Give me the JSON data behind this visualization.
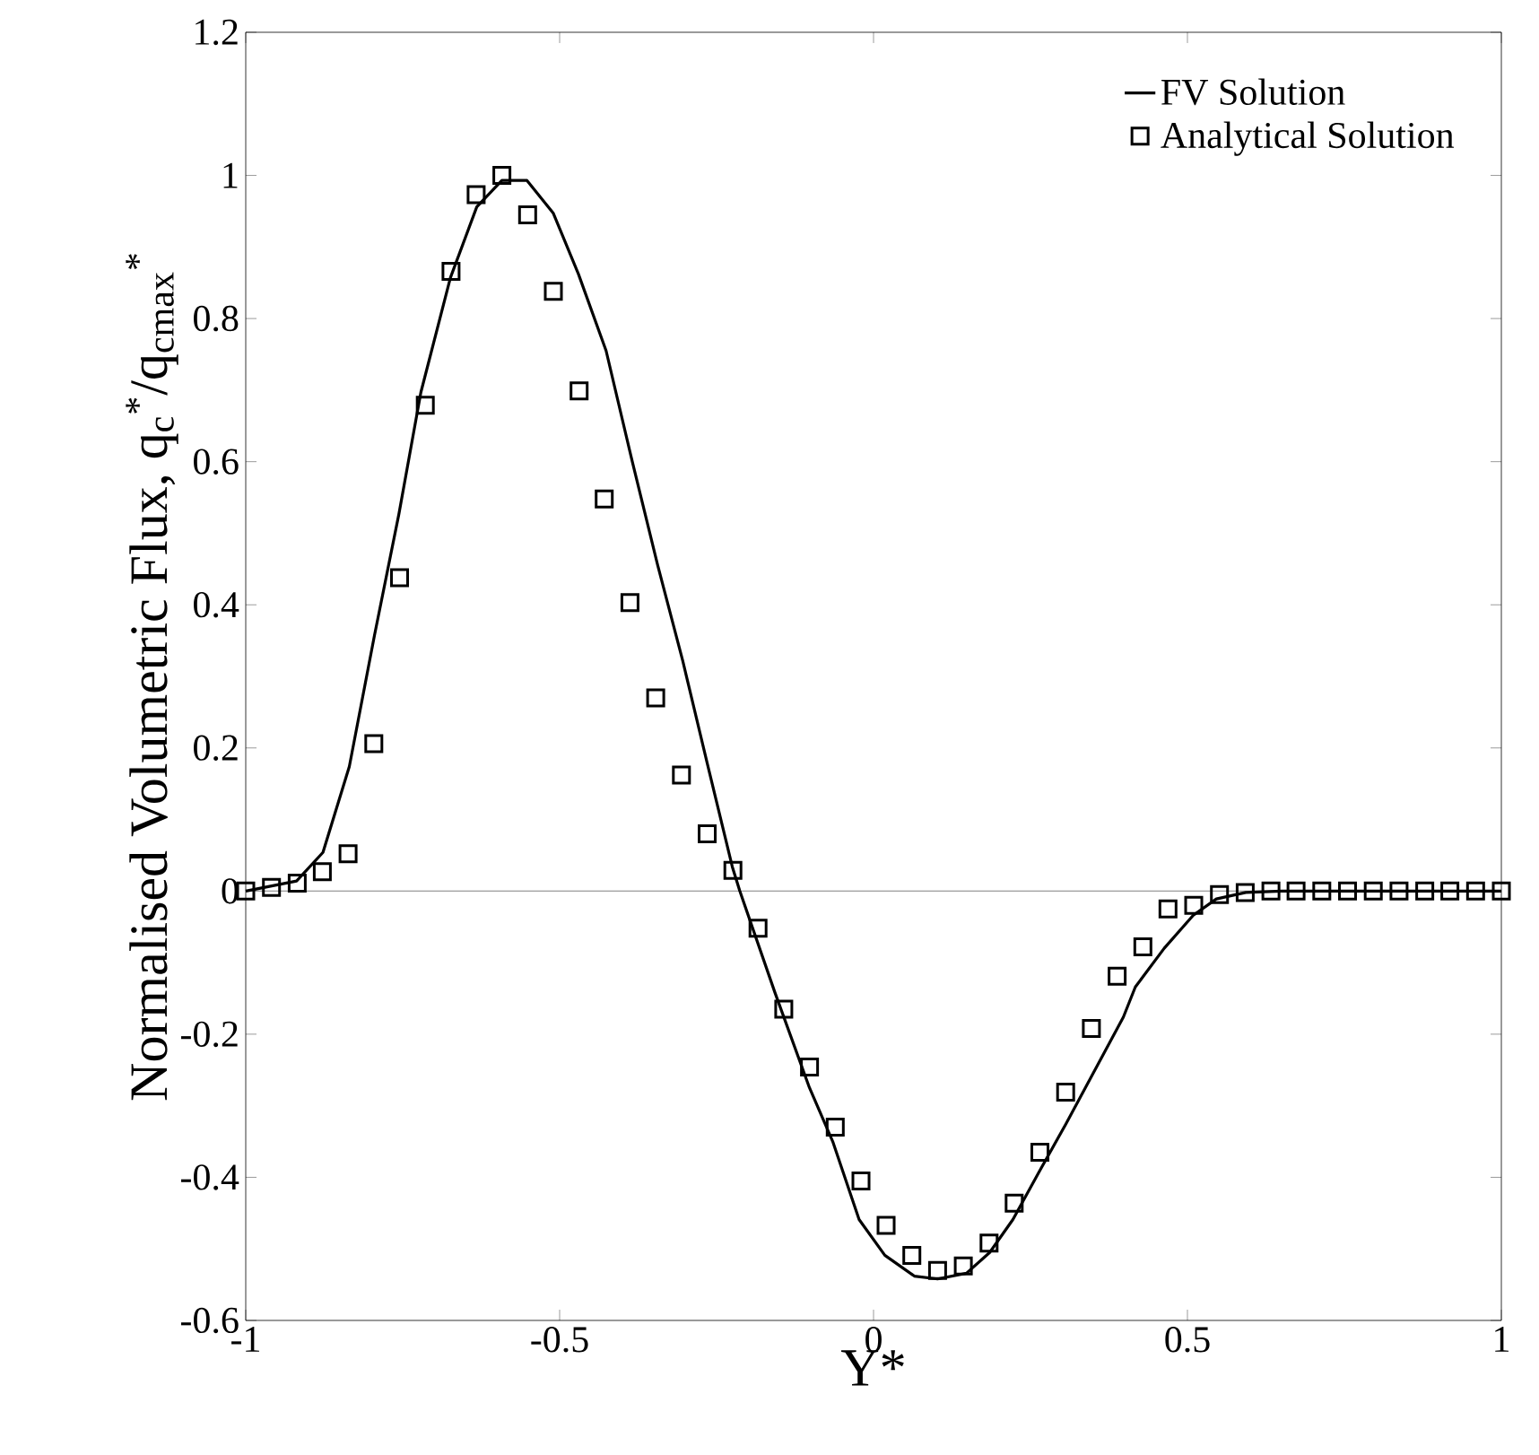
{
  "chart_data": {
    "type": "line",
    "xlabel": "Y*",
    "ylabel": "Normalised Volumetric Flux, q$_{c}$$^{*}$/q$_{cmax}$$^{*}$",
    "xlim": [
      -1,
      1
    ],
    "ylim": [
      -0.6,
      1.2
    ],
    "xticks": [
      -1,
      -0.5,
      0,
      0.5,
      1
    ],
    "yticks": [
      -0.6,
      -0.4,
      -0.2,
      0,
      0.2,
      0.4,
      0.6,
      0.8,
      1,
      1.2
    ],
    "legend": "top right",
    "ref_lines": [
      {
        "axis": "y",
        "value": 0,
        "color": "#808080"
      }
    ],
    "series": [
      {
        "name": "FV Solution",
        "color": "#000000",
        "marker": "none",
        "x": [
          -1.0,
          -0.919,
          -0.877,
          -0.835,
          -0.795,
          -0.756,
          -0.721,
          -0.674,
          -0.632,
          -0.592,
          -0.552,
          -0.51,
          -0.47,
          -0.426,
          -0.384,
          -0.344,
          -0.304,
          -0.265,
          -0.225,
          -0.213,
          -0.157,
          -0.102,
          -0.065,
          -0.023,
          0.018,
          0.065,
          0.102,
          0.148,
          0.185,
          0.222,
          0.264,
          0.306,
          0.352,
          0.398,
          0.417,
          0.463,
          0.509,
          0.546,
          0.593,
          0.65,
          0.8,
          1.0
        ],
        "values": [
          0,
          0.014,
          0.054,
          0.174,
          0.357,
          0.527,
          0.697,
          0.857,
          0.956,
          0.993,
          0.993,
          0.947,
          0.862,
          0.755,
          0.599,
          0.456,
          0.322,
          0.179,
          0.034,
          0,
          -0.142,
          -0.275,
          -0.35,
          -0.459,
          -0.509,
          -0.538,
          -0.542,
          -0.534,
          -0.505,
          -0.459,
          -0.392,
          -0.326,
          -0.251,
          -0.176,
          -0.134,
          -0.08,
          -0.034,
          -0.011,
          -0.002,
          0,
          0,
          0
        ]
      },
      {
        "name": "Analytical Solution",
        "type": "scatter",
        "color": "#000000",
        "marker": "square",
        "x": [
          -1.0,
          -0.959,
          -0.918,
          -0.878,
          -0.837,
          -0.796,
          -0.755,
          -0.714,
          -0.673,
          -0.633,
          -0.592,
          -0.551,
          -0.51,
          -0.469,
          -0.429,
          -0.388,
          -0.347,
          -0.306,
          -0.265,
          -0.224,
          -0.184,
          -0.143,
          -0.102,
          -0.061,
          -0.02,
          0.02,
          0.061,
          0.102,
          0.143,
          0.184,
          0.224,
          0.265,
          0.306,
          0.347,
          0.388,
          0.429,
          0.469,
          0.51,
          0.551,
          0.592,
          0.633,
          0.673,
          0.714,
          0.755,
          0.796,
          0.837,
          0.878,
          0.918,
          0.959,
          1.0
        ],
        "values": [
          0,
          0.005,
          0.011,
          0.027,
          0.052,
          0.206,
          0.438,
          0.679,
          0.866,
          0.973,
          1.0,
          0.945,
          0.838,
          0.699,
          0.548,
          0.403,
          0.27,
          0.162,
          0.08,
          0.029,
          -0.052,
          -0.165,
          -0.246,
          -0.33,
          -0.405,
          -0.467,
          -0.509,
          -0.53,
          -0.524,
          -0.492,
          -0.436,
          -0.365,
          -0.281,
          -0.192,
          -0.119,
          -0.078,
          -0.025,
          -0.02,
          -0.005,
          -0.002,
          0,
          0,
          0,
          0,
          0,
          0,
          0,
          0,
          0,
          0
        ]
      }
    ]
  }
}
